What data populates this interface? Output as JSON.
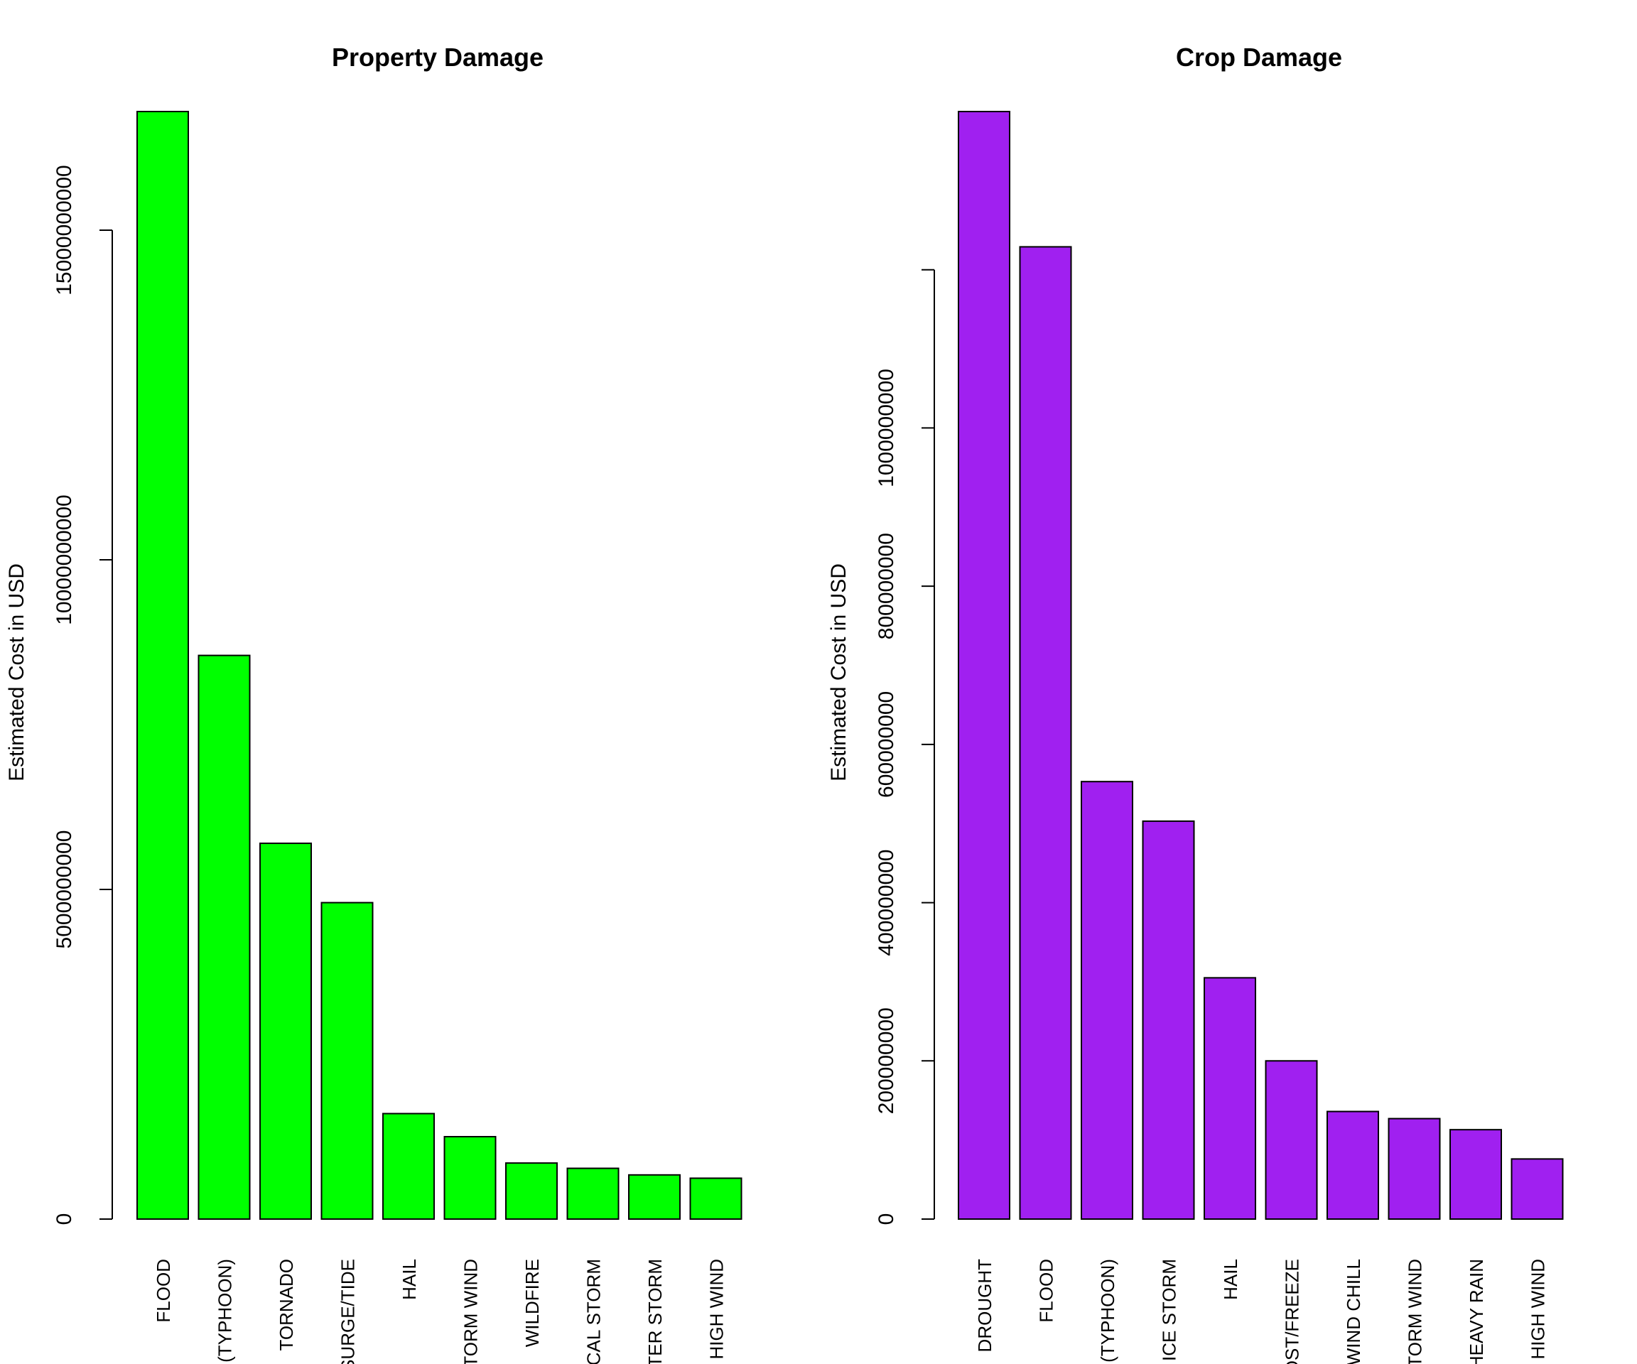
{
  "chart_data": [
    {
      "type": "bar",
      "title": "Property Damage",
      "xlabel": "",
      "ylabel": "Estimated Cost in USD",
      "color": "#00ff00",
      "ylim": [
        0,
        16800000000
      ],
      "yticks": [
        0,
        5000000000,
        10000000000,
        15000000000
      ],
      "ytick_labels": [
        "0",
        "5000000000",
        "10000000000",
        "15000000000"
      ],
      "categories": [
        "FLOOD",
        "E (TYPHOON)",
        "TORNADO",
        "I SURGE/TIDE",
        "HAIL",
        "STORM WIND",
        "WILDFIRE",
        "PICAL STORM",
        "NTER STORM",
        "HIGH WIND"
      ],
      "values": [
        16800000000,
        8550000000,
        5700000000,
        4800000000,
        1600000000,
        1250000000,
        850000000,
        770000000,
        670000000,
        620000000
      ]
    },
    {
      "type": "bar",
      "title": "Crop Damage",
      "xlabel": "",
      "ylabel": "Estimated Cost in USD",
      "color": "#a020f0",
      "ylim": [
        0,
        1400000000
      ],
      "yticks": [
        0,
        200000000,
        400000000,
        600000000,
        800000000,
        1000000000,
        1200000000
      ],
      "ytick_labels": [
        "0",
        "200000000",
        "400000000",
        "600000000",
        "800000000",
        "1000000000",
        ""
      ],
      "categories": [
        "DROUGHT",
        "FLOOD",
        "E (TYPHOON)",
        "ICE STORM",
        "HAIL",
        "ROST/FREEZE",
        "D/WIND CHILL",
        "STORM WIND",
        "HEAVY RAIN",
        "HIGH WIND"
      ],
      "values": [
        1400000000,
        1229000000,
        553000000,
        503000000,
        305000000,
        200000000,
        136000000,
        127000000,
        113000000,
        76000000
      ]
    }
  ]
}
